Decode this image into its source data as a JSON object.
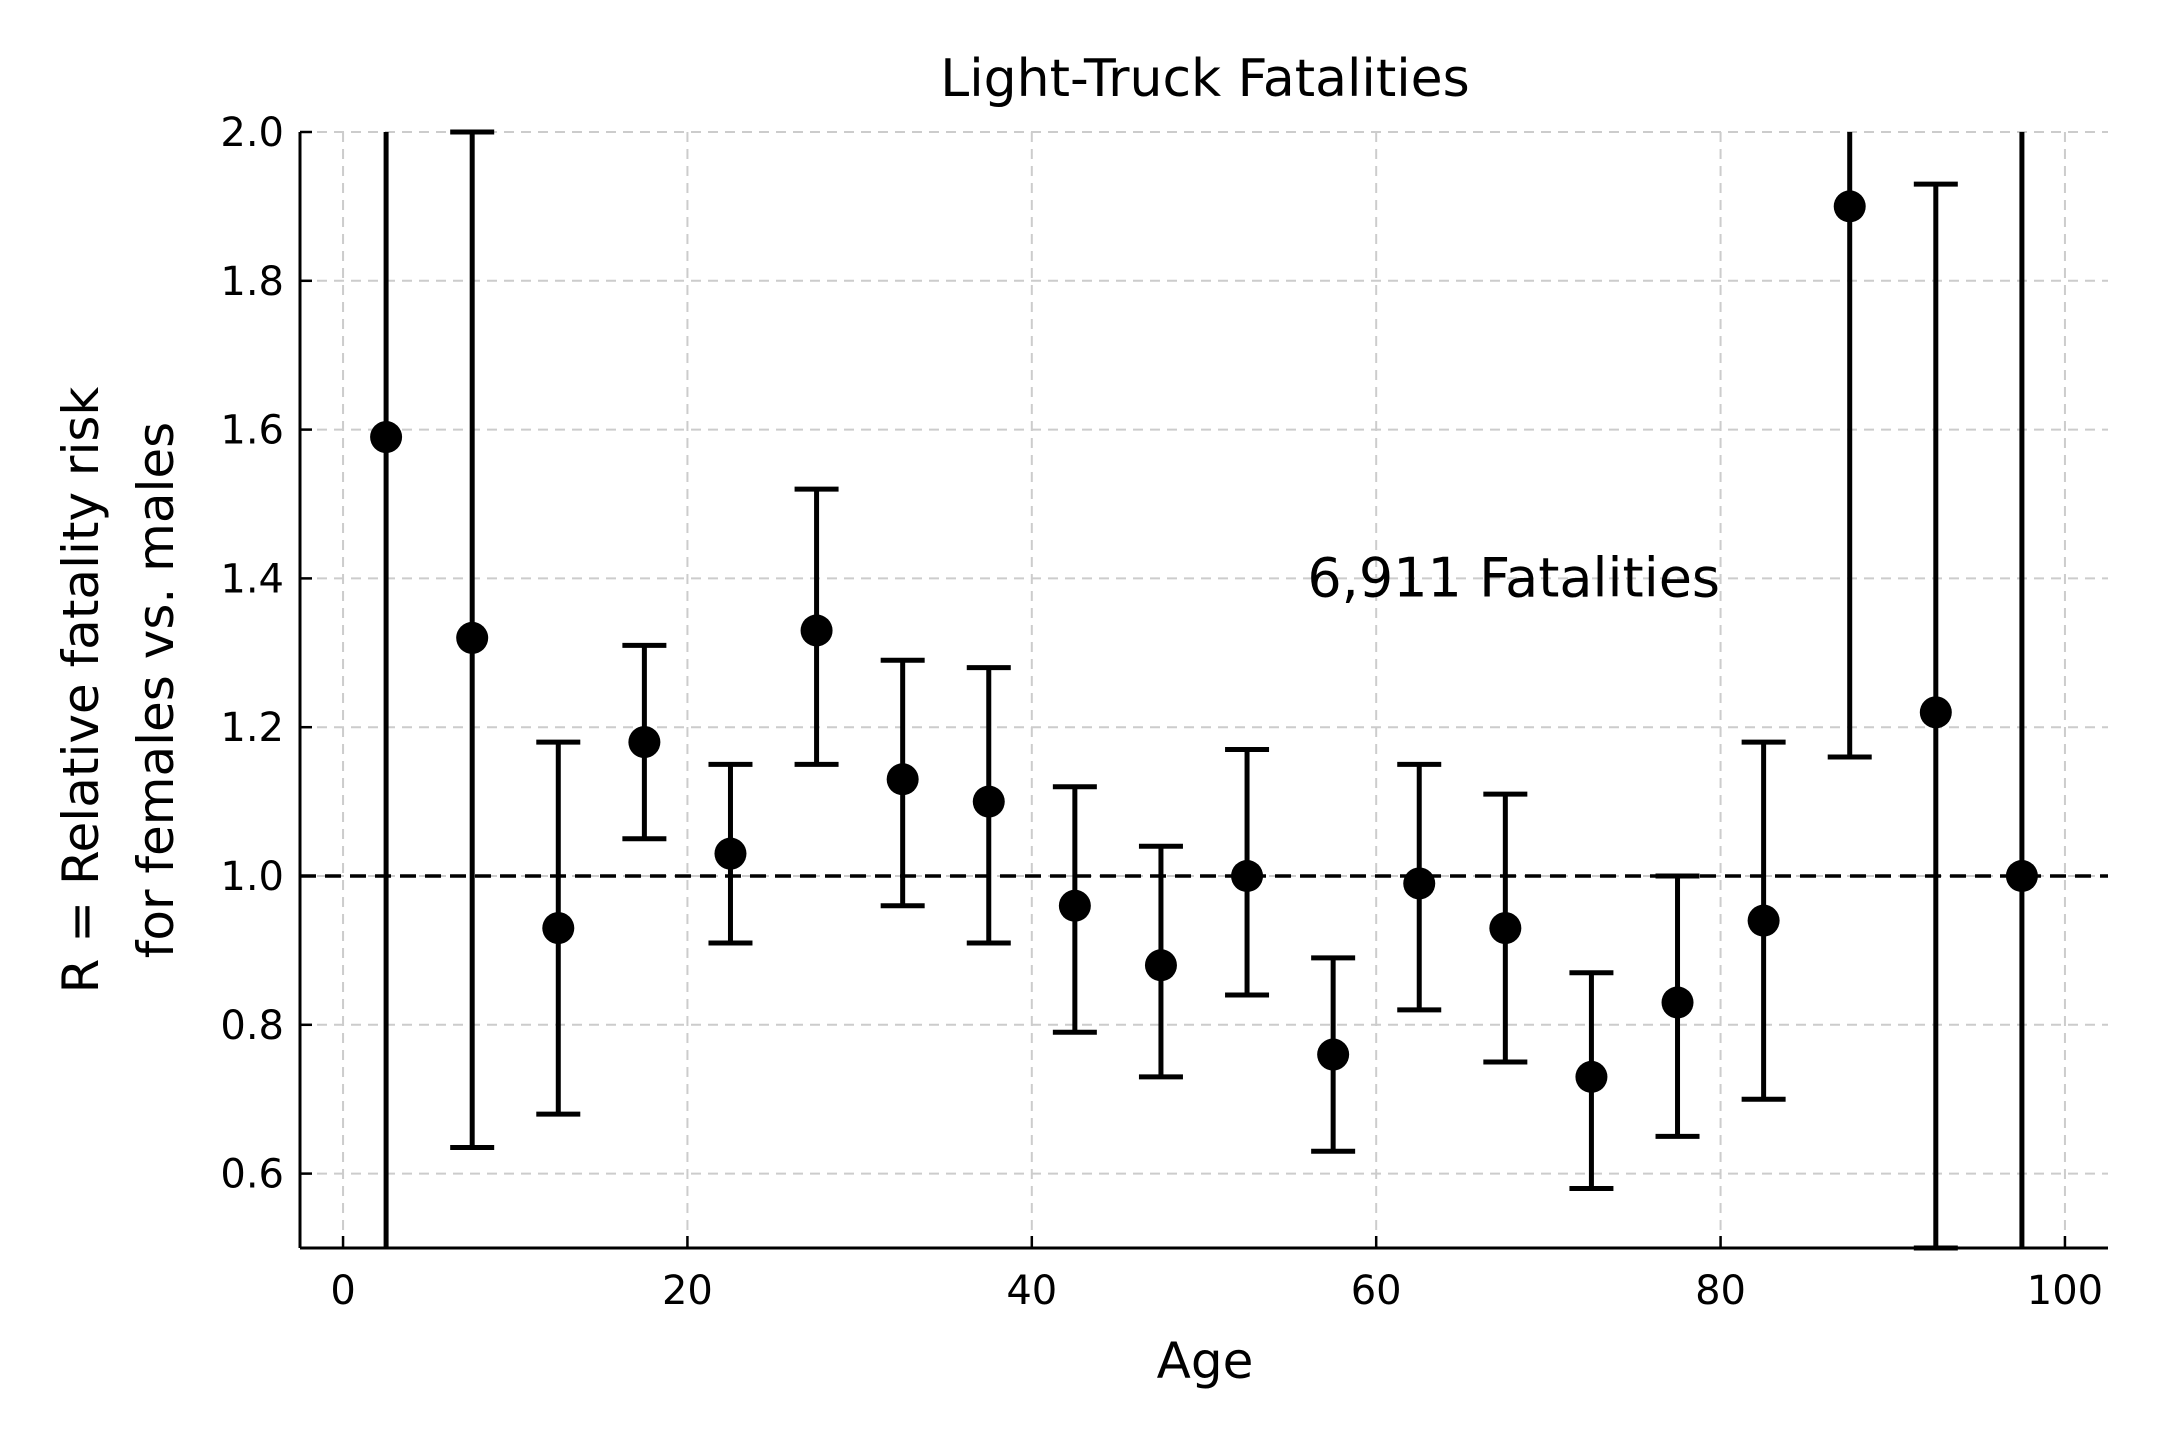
{
  "chart_data": {
    "type": "scatter",
    "title": "Light-Truck Fatalities",
    "xlabel": "Age",
    "ylabel": [
      "R = Relative fatality risk",
      "for females vs. males"
    ],
    "xlim": [
      -2.5,
      102.5
    ],
    "ylim": [
      0.5,
      2.0
    ],
    "xticks": [
      0,
      20,
      40,
      60,
      80,
      100
    ],
    "yticks": [
      0.6,
      0.8,
      1.0,
      1.2,
      1.4,
      1.6,
      1.8,
      2.0
    ],
    "grid": true,
    "reference_line": {
      "y": 1.0,
      "style": "dashed"
    },
    "annotation": {
      "text": "6,911 Fatalities",
      "x": 56,
      "y": 1.4
    },
    "points": [
      {
        "x": 2.5,
        "y": 1.59,
        "lo": 0.5,
        "hi": 2.0
      },
      {
        "x": 7.5,
        "y": 1.32,
        "lo": 0.635,
        "hi": 2.0
      },
      {
        "x": 12.5,
        "y": 0.93,
        "lo": 0.68,
        "hi": 1.18
      },
      {
        "x": 17.5,
        "y": 1.18,
        "lo": 1.05,
        "hi": 1.31
      },
      {
        "x": 22.5,
        "y": 1.03,
        "lo": 0.91,
        "hi": 1.15
      },
      {
        "x": 27.5,
        "y": 1.33,
        "lo": 1.15,
        "hi": 1.52
      },
      {
        "x": 32.5,
        "y": 1.13,
        "lo": 0.96,
        "hi": 1.29
      },
      {
        "x": 37.5,
        "y": 1.1,
        "lo": 0.91,
        "hi": 1.28
      },
      {
        "x": 42.5,
        "y": 0.96,
        "lo": 0.79,
        "hi": 1.12
      },
      {
        "x": 47.5,
        "y": 0.88,
        "lo": 0.73,
        "hi": 1.04
      },
      {
        "x": 52.5,
        "y": 1.0,
        "lo": 0.84,
        "hi": 1.17
      },
      {
        "x": 57.5,
        "y": 0.76,
        "lo": 0.63,
        "hi": 0.89
      },
      {
        "x": 62.5,
        "y": 0.99,
        "lo": 0.82,
        "hi": 1.15
      },
      {
        "x": 67.5,
        "y": 0.93,
        "lo": 0.75,
        "hi": 1.11
      },
      {
        "x": 72.5,
        "y": 0.73,
        "lo": 0.58,
        "hi": 0.87
      },
      {
        "x": 77.5,
        "y": 0.83,
        "lo": 0.65,
        "hi": 1.0
      },
      {
        "x": 82.5,
        "y": 0.94,
        "lo": 0.7,
        "hi": 1.18
      },
      {
        "x": 87.5,
        "y": 1.9,
        "lo": 1.16,
        "hi": 2.0
      },
      {
        "x": 92.5,
        "y": 1.22,
        "lo": 0.5,
        "hi": 1.93
      },
      {
        "x": 97.5,
        "y": 1.0,
        "lo": 0.5,
        "hi": 2.0
      }
    ]
  }
}
